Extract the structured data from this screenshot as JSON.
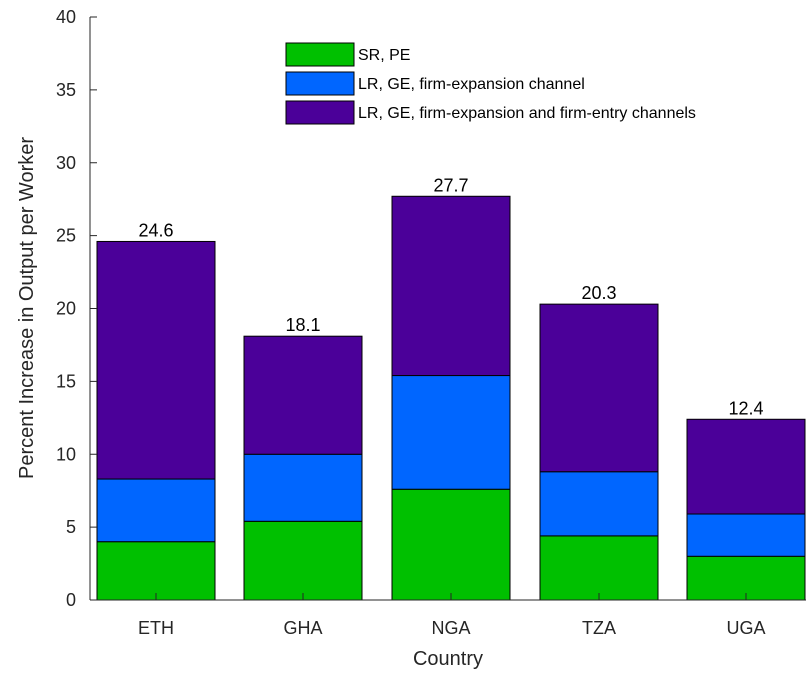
{
  "chart_data": {
    "type": "bar",
    "stacked": true,
    "categories": [
      "ETH",
      "GHA",
      "NGA",
      "TZA",
      "UGA"
    ],
    "series": [
      {
        "name": "SR, PE",
        "values": [
          4.0,
          5.4,
          7.6,
          4.4,
          3.0
        ],
        "color": "#00c000"
      },
      {
        "name": "LR, GE, firm-expansion channel",
        "values": [
          4.3,
          4.6,
          7.8,
          4.4,
          2.9
        ],
        "color": "#0066ff"
      },
      {
        "name": "LR, GE, firm-expansion and firm-entry channels",
        "values": [
          16.3,
          8.1,
          12.3,
          11.5,
          6.5
        ],
        "color": "#4b0099"
      }
    ],
    "totals": [
      "24.6",
      "18.1",
      "27.7",
      "20.3",
      "12.4"
    ],
    "yticks": [
      "0",
      "5",
      "10",
      "15",
      "20",
      "25",
      "30",
      "35",
      "40"
    ],
    "xlabel": "Country",
    "ylabel": "Percent Increase in Output per Worker",
    "ylim": [
      0,
      40
    ],
    "grid": false,
    "legend_position": "top-right"
  }
}
